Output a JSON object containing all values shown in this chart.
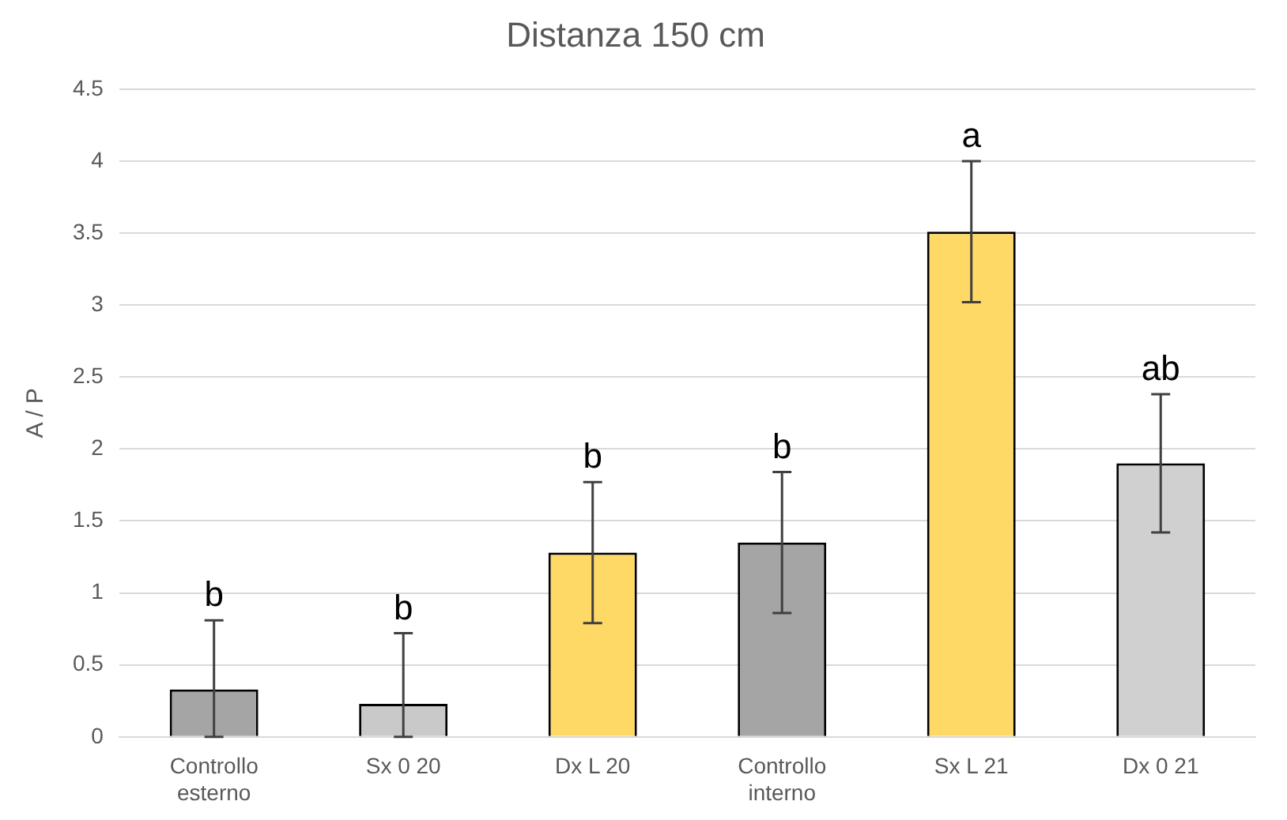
{
  "chart_data": {
    "type": "bar",
    "title": "Distanza 150 cm",
    "ylabel": "A / P",
    "categories": [
      "Controllo esterno",
      "Sx 0 20",
      "Dx L 20",
      "Controllo interno",
      "Sx L 21",
      "Dx 0 21"
    ],
    "values": [
      0.33,
      0.23,
      1.28,
      1.35,
      3.51,
      1.9
    ],
    "errors": [
      [
        0,
        0.81
      ],
      [
        0,
        0.72
      ],
      0.49,
      0.49,
      0.49,
      0.48
    ],
    "colors": [
      "#a5a5a5",
      "#c9c9c9",
      "#ffd966",
      "#a5a5a5",
      "#ffd966",
      "#d0d0d0"
    ],
    "ylim": [
      0,
      4.5
    ],
    "yticks": [
      0,
      0.5,
      1,
      1.5,
      2,
      2.5,
      3,
      3.5,
      4,
      4.5
    ],
    "grid": "y",
    "annotations": [
      {
        "text": "b",
        "x": "Controllo esterno",
        "y": 0.81
      },
      {
        "text": "b",
        "x": "Sx 0 20",
        "y": 0.72
      },
      {
        "text": "b",
        "x": "Dx L 20",
        "y": 1.77
      },
      {
        "text": "b",
        "x": "Controllo interno",
        "y": 1.84
      },
      {
        "text": "a",
        "x": "Sx L 21",
        "y": 4.0
      },
      {
        "text": "ab",
        "x": "Dx 0 21",
        "y": 2.38
      }
    ]
  }
}
